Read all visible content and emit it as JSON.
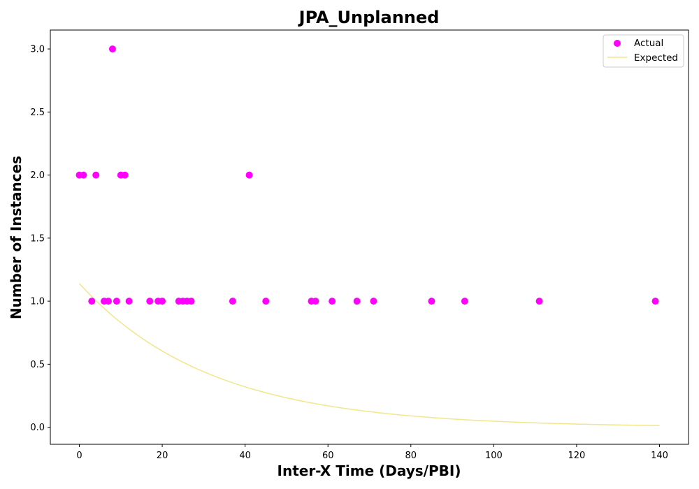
{
  "chart_data": {
    "type": "scatter",
    "title": "JPA_Unplanned",
    "xlabel": "Inter-X Time (Days/PBI)",
    "ylabel": "Number of Instances",
    "xlim": [
      -7,
      147
    ],
    "ylim": [
      -0.135,
      3.15
    ],
    "xticks": [
      0,
      20,
      40,
      60,
      80,
      100,
      120,
      140
    ],
    "xtick_labels": [
      "0",
      "20",
      "40",
      "60",
      "80",
      "100",
      "120",
      "140"
    ],
    "yticks": [
      0.0,
      0.5,
      1.0,
      1.5,
      2.0,
      2.5,
      3.0
    ],
    "ytick_labels": [
      "0.0",
      "0.5",
      "1.0",
      "1.5",
      "2.0",
      "2.5",
      "3.0"
    ],
    "grid": false,
    "legend_position": "top-right",
    "series": [
      {
        "name": "Actual",
        "kind": "scatter",
        "color": "#ff00ff",
        "points": [
          [
            0,
            2
          ],
          [
            1,
            2
          ],
          [
            3,
            1
          ],
          [
            4,
            2
          ],
          [
            6,
            1
          ],
          [
            7,
            1
          ],
          [
            8,
            3
          ],
          [
            9,
            1
          ],
          [
            10,
            2
          ],
          [
            11,
            2
          ],
          [
            12,
            1
          ],
          [
            17,
            1
          ],
          [
            19,
            1
          ],
          [
            20,
            1
          ],
          [
            24,
            1
          ],
          [
            25,
            1
          ],
          [
            26,
            1
          ],
          [
            27,
            1
          ],
          [
            37,
            1
          ],
          [
            41,
            2
          ],
          [
            45,
            1
          ],
          [
            56,
            1
          ],
          [
            57,
            1
          ],
          [
            61,
            1
          ],
          [
            67,
            1
          ],
          [
            71,
            1
          ],
          [
            85,
            1
          ],
          [
            93,
            1
          ],
          [
            111,
            1
          ],
          [
            139,
            1
          ]
        ]
      },
      {
        "name": "Expected",
        "kind": "line",
        "color": "#f0e68c",
        "function": "exponential_decay",
        "a": 1.14,
        "b": 0.0317,
        "x_range": [
          0,
          140
        ]
      }
    ]
  }
}
